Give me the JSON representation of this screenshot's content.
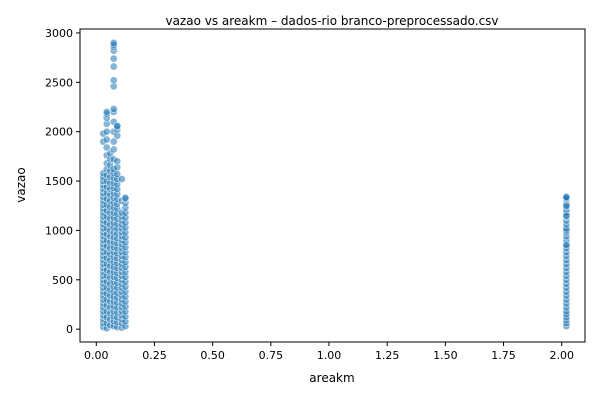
{
  "chart_data": {
    "type": "scatter",
    "title": "vazao vs areakm – dados-rio branco-preprocessado.csv",
    "xlabel": "areakm",
    "ylabel": "vazao",
    "xlim": [
      -0.07,
      2.1
    ],
    "ylim": [
      -130,
      3040
    ],
    "xticks": [
      0.0,
      0.25,
      0.5,
      0.75,
      1.0,
      1.25,
      1.5,
      1.75,
      2.0
    ],
    "xtick_labels": [
      "0.00",
      "0.25",
      "0.50",
      "0.75",
      "1.00",
      "1.25",
      "1.50",
      "1.75",
      "2.00"
    ],
    "yticks": [
      0,
      500,
      1000,
      1500,
      2000,
      2500,
      3000
    ],
    "ytick_labels": [
      "0",
      "500",
      "1000",
      "1500",
      "2000",
      "2500",
      "3000"
    ],
    "grid": false,
    "legend": "none",
    "color": "#1f77b4",
    "series": [
      {
        "x": [
          0.03,
          0.03,
          0.03,
          0.03,
          0.03,
          0.03,
          0.03,
          0.03,
          0.03,
          0.03,
          0.03,
          0.03,
          0.03,
          0.03,
          0.03,
          0.03,
          0.03,
          0.03,
          0.03,
          0.03,
          0.03,
          0.03,
          0.03,
          0.03,
          0.03,
          0.03,
          0.03,
          0.03,
          0.03,
          0.03,
          0.03,
          0.03,
          0.03,
          0.03,
          0.03,
          0.03,
          0.03,
          0.03,
          0.03,
          0.03,
          0.03,
          0.03,
          0.045,
          0.045,
          0.045,
          0.045,
          0.045,
          0.045,
          0.045,
          0.045,
          0.045,
          0.045,
          0.045,
          0.045,
          0.045,
          0.045,
          0.045,
          0.045,
          0.045,
          0.045,
          0.045,
          0.045,
          0.045,
          0.045,
          0.045,
          0.045,
          0.045,
          0.045,
          0.045,
          0.045,
          0.045,
          0.045,
          0.045,
          0.045,
          0.045,
          0.045,
          0.045,
          0.045,
          0.045,
          0.06,
          0.06,
          0.06,
          0.06,
          0.06,
          0.06,
          0.06,
          0.06,
          0.06,
          0.06,
          0.06,
          0.06,
          0.06,
          0.06,
          0.06,
          0.06,
          0.06,
          0.06,
          0.06,
          0.06,
          0.06,
          0.06,
          0.06,
          0.06,
          0.06,
          0.06,
          0.06,
          0.06,
          0.06,
          0.06,
          0.075,
          0.075,
          0.075,
          0.075,
          0.075,
          0.075,
          0.075,
          0.075,
          0.075,
          0.075,
          0.075,
          0.075,
          0.075,
          0.075,
          0.075,
          0.075,
          0.075,
          0.075,
          0.075,
          0.075,
          0.075,
          0.075,
          0.075,
          0.075,
          0.075,
          0.075,
          0.075,
          0.075,
          0.075,
          0.075,
          0.075,
          0.075,
          0.075,
          0.075,
          0.075,
          0.075,
          0.075,
          0.075,
          0.075,
          0.075,
          0.09,
          0.09,
          0.09,
          0.09,
          0.09,
          0.09,
          0.09,
          0.09,
          0.09,
          0.09,
          0.09,
          0.09,
          0.09,
          0.09,
          0.09,
          0.09,
          0.09,
          0.09,
          0.09,
          0.09,
          0.09,
          0.09,
          0.09,
          0.09,
          0.09,
          0.09,
          0.09,
          0.09,
          0.09,
          0.09,
          0.09,
          0.09,
          0.09,
          0.09,
          0.09,
          0.09,
          0.09,
          0.09,
          0.11,
          0.11,
          0.11,
          0.11,
          0.11,
          0.11,
          0.11,
          0.11,
          0.11,
          0.11,
          0.11,
          0.11,
          0.11,
          0.11,
          0.11,
          0.11,
          0.11,
          0.11,
          0.11,
          0.11,
          0.11,
          0.11,
          0.11,
          0.11,
          0.11,
          0.11,
          0.11,
          0.11,
          0.11,
          0.11,
          0.11,
          0.11,
          0.125,
          0.125,
          0.125,
          0.125,
          0.125,
          0.125,
          0.125,
          0.125,
          0.125,
          0.125,
          0.125,
          0.125,
          0.125,
          0.125,
          0.125,
          0.125,
          0.125,
          0.125,
          0.125,
          0.125,
          0.125,
          0.125,
          0.125,
          0.125,
          0.125,
          0.125,
          0.125,
          0.125,
          2.02,
          2.02,
          2.02,
          2.02,
          2.02,
          2.02,
          2.02,
          2.02,
          2.02,
          2.02,
          2.02,
          2.02,
          2.02,
          2.02,
          2.02,
          2.02,
          2.02,
          2.02,
          2.02,
          2.02,
          2.02,
          2.02,
          2.02,
          2.02,
          2.02,
          2.02,
          2.02,
          2.02,
          2.02,
          2.02,
          2.02,
          2.02,
          2.02,
          2.02,
          2.02,
          2.02,
          2.02,
          2.02,
          2.02,
          2.02,
          2.02,
          2.02,
          2.02,
          2.02
        ],
        "y": [
          20,
          60,
          100,
          140,
          180,
          220,
          260,
          300,
          340,
          380,
          420,
          460,
          500,
          540,
          580,
          620,
          660,
          700,
          740,
          780,
          820,
          860,
          900,
          940,
          980,
          1020,
          1060,
          1100,
          1140,
          1180,
          1220,
          1260,
          1300,
          1340,
          1380,
          1420,
          1460,
          1500,
          1540,
          1580,
          1900,
          1980,
          10,
          60,
          120,
          180,
          240,
          300,
          360,
          420,
          480,
          540,
          600,
          660,
          720,
          780,
          840,
          900,
          960,
          1020,
          1080,
          1140,
          1200,
          1260,
          1320,
          1380,
          1440,
          1500,
          1560,
          1620,
          1680,
          1760,
          1840,
          1920,
          2000,
          2080,
          2140,
          2180,
          2200,
          40,
          100,
          160,
          220,
          280,
          340,
          400,
          460,
          520,
          580,
          640,
          700,
          760,
          820,
          880,
          940,
          1000,
          1060,
          1120,
          1180,
          1240,
          1300,
          1360,
          1420,
          1480,
          1540,
          1600,
          1660,
          1720,
          1780,
          30,
          80,
          130,
          180,
          230,
          280,
          330,
          380,
          430,
          480,
          530,
          580,
          630,
          680,
          730,
          780,
          830,
          880,
          930,
          980,
          1030,
          1080,
          1130,
          1180,
          1230,
          1280,
          1330,
          1380,
          1430,
          1480,
          1530,
          1580,
          1620,
          1720,
          1820,
          1900,
          2000,
          2100,
          2200,
          2230,
          20,
          70,
          120,
          170,
          220,
          270,
          320,
          370,
          420,
          470,
          520,
          570,
          620,
          670,
          720,
          770,
          820,
          870,
          920,
          970,
          1020,
          1070,
          1120,
          1170,
          1220,
          1270,
          1320,
          1370,
          1420,
          1470,
          1520,
          1570,
          1640,
          1700,
          1960,
          2020,
          2050,
          2060,
          15,
          60,
          100,
          140,
          180,
          220,
          260,
          300,
          340,
          380,
          420,
          460,
          500,
          540,
          580,
          620,
          660,
          700,
          740,
          780,
          820,
          860,
          900,
          940,
          980,
          1020,
          1060,
          1100,
          1140,
          1180,
          1300,
          1520,
          30,
          80,
          130,
          180,
          230,
          280,
          330,
          380,
          430,
          480,
          530,
          580,
          630,
          680,
          730,
          780,
          830,
          880,
          930,
          980,
          1030,
          1080,
          1130,
          1180,
          1230,
          1280,
          1320,
          1330,
          30,
          60,
          90,
          120,
          150,
          180,
          220,
          260,
          300,
          340,
          380,
          420,
          460,
          500,
          540,
          580,
          620,
          660,
          700,
          740,
          780,
          820,
          860,
          900,
          940,
          980,
          1000,
          1020,
          1060,
          1100,
          1140,
          1180,
          1210,
          1240,
          1260,
          1280,
          1300,
          1310,
          1320,
          1330,
          1340,
          850,
          1150,
          1250
        ]
      },
      {
        "x": [
          0.075,
          0.075,
          0.075,
          0.075,
          0.075,
          0.075,
          0.075,
          0.075
        ],
        "y": [
          2460,
          2520,
          2660,
          2740,
          2820,
          2860,
          2880,
          2900
        ]
      }
    ]
  }
}
